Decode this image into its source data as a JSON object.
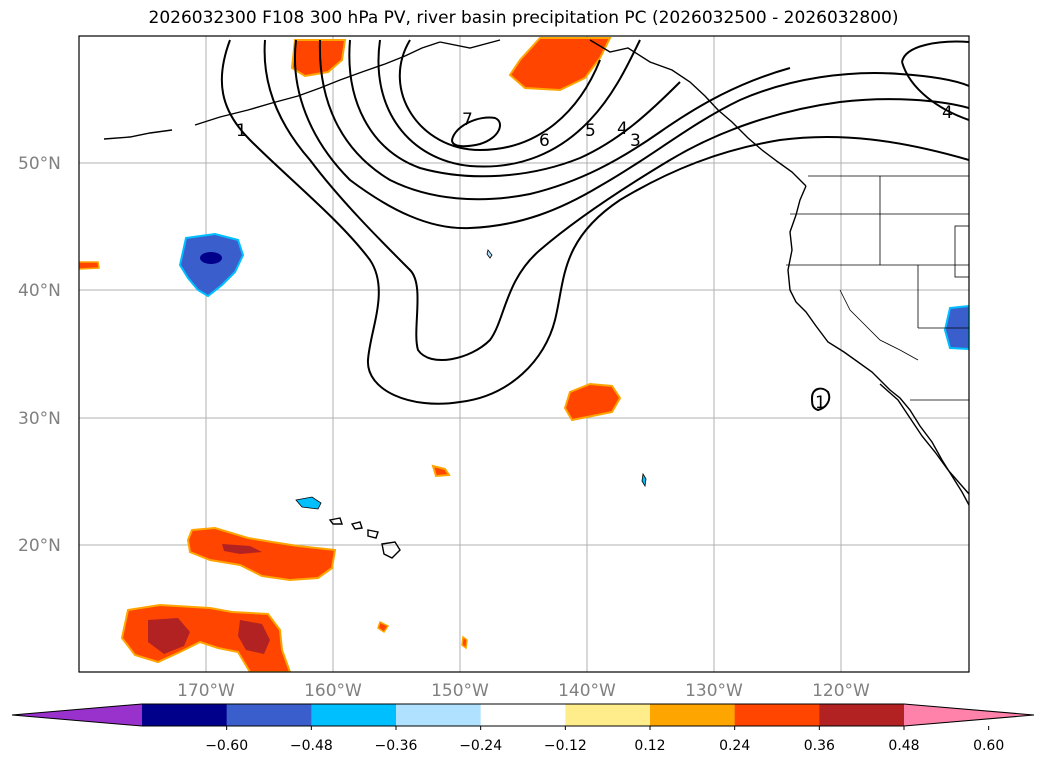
{
  "title": "2026032300 F108 300 hPa PV, river basin precipitation PC (2026032500 - 2026032800)",
  "map": {
    "lat_labels": [
      "50°N",
      "40°N",
      "30°N",
      "20°N"
    ],
    "lon_labels": [
      "170°W",
      "160°W",
      "150°W",
      "140°W",
      "130°W",
      "120°W"
    ],
    "pv_contour_labels": [
      "1",
      "7",
      "6",
      "5",
      "4",
      "3",
      "4",
      "1"
    ]
  },
  "colorbar": {
    "colors": [
      "#9932cc",
      "#00008b",
      "#3a5fcd",
      "#00bfff",
      "#b0e2ff",
      "#ffffff",
      "#ffec8b",
      "#ffa500",
      "#ff4500",
      "#b22222",
      "#ff82ab"
    ],
    "tick_labels": [
      "−0.60",
      "−0.48",
      "−0.36",
      "−0.24",
      "−0.12",
      "0.12",
      "0.24",
      "0.36",
      "0.48",
      "0.60"
    ]
  }
}
